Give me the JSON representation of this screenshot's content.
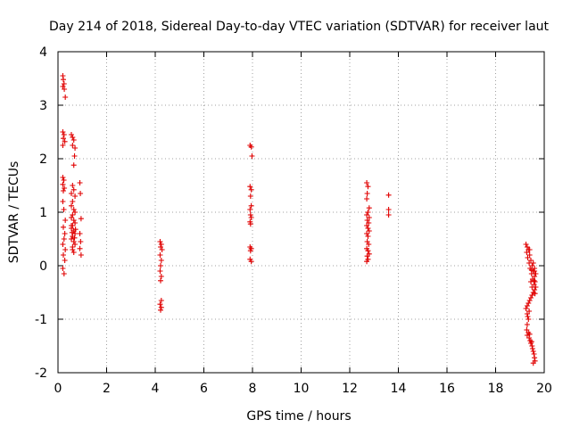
{
  "chart_data": {
    "type": "scatter",
    "title": "Day 214 of 2018, Sidereal Day-to-day VTEC variation (SDTVAR) for receiver laut",
    "xlabel": "GPS time / hours",
    "ylabel": "SDTVAR / TECUs",
    "xlim": [
      0,
      20
    ],
    "ylim": [
      -2,
      4
    ],
    "x_ticks": [
      0,
      2,
      4,
      6,
      8,
      10,
      12,
      14,
      16,
      18,
      20
    ],
    "y_ticks": [
      -2,
      -1,
      0,
      1,
      2,
      3,
      4
    ],
    "grid": true,
    "marker": "+",
    "colors": {
      "series": "#e00000",
      "grid": "#a0a0a0",
      "axis": "#000000"
    },
    "series": [
      {
        "name": "SDTVAR",
        "points": [
          [
            0.2,
            3.55
          ],
          [
            0.22,
            3.48
          ],
          [
            0.25,
            3.4
          ],
          [
            0.2,
            3.35
          ],
          [
            0.26,
            3.3
          ],
          [
            0.3,
            3.15
          ],
          [
            0.2,
            2.5
          ],
          [
            0.25,
            2.45
          ],
          [
            0.22,
            2.38
          ],
          [
            0.28,
            2.32
          ],
          [
            0.2,
            2.25
          ],
          [
            0.2,
            1.65
          ],
          [
            0.24,
            1.6
          ],
          [
            0.2,
            1.52
          ],
          [
            0.26,
            1.45
          ],
          [
            0.22,
            1.4
          ],
          [
            0.2,
            1.2
          ],
          [
            0.24,
            1.05
          ],
          [
            0.3,
            0.85
          ],
          [
            0.22,
            0.72
          ],
          [
            0.28,
            0.6
          ],
          [
            0.25,
            0.5
          ],
          [
            0.2,
            0.4
          ],
          [
            0.3,
            0.3
          ],
          [
            0.22,
            0.2
          ],
          [
            0.28,
            0.1
          ],
          [
            0.2,
            -0.05
          ],
          [
            0.25,
            -0.15
          ],
          [
            0.55,
            2.45
          ],
          [
            0.6,
            2.4
          ],
          [
            0.65,
            2.35
          ],
          [
            0.6,
            2.25
          ],
          [
            0.7,
            2.2
          ],
          [
            0.68,
            2.05
          ],
          [
            0.65,
            1.88
          ],
          [
            0.6,
            1.5
          ],
          [
            0.65,
            1.42
          ],
          [
            0.55,
            1.35
          ],
          [
            0.7,
            1.3
          ],
          [
            0.6,
            1.2
          ],
          [
            0.55,
            1.12
          ],
          [
            0.65,
            1.05
          ],
          [
            0.7,
            1.0
          ],
          [
            0.6,
            0.95
          ],
          [
            0.55,
            0.9
          ],
          [
            0.65,
            0.85
          ],
          [
            0.7,
            0.8
          ],
          [
            0.6,
            0.75
          ],
          [
            0.55,
            0.7
          ],
          [
            0.65,
            0.65
          ],
          [
            0.7,
            0.6
          ],
          [
            0.6,
            0.55
          ],
          [
            0.55,
            0.5
          ],
          [
            0.65,
            0.45
          ],
          [
            0.7,
            0.4
          ],
          [
            0.6,
            0.35
          ],
          [
            0.6,
            0.3
          ],
          [
            0.65,
            0.25
          ],
          [
            0.55,
            0.75
          ],
          [
            0.72,
            0.68
          ],
          [
            0.58,
            0.62
          ],
          [
            0.68,
            0.52
          ],
          [
            0.9,
            1.55
          ],
          [
            0.92,
            1.35
          ],
          [
            0.95,
            0.88
          ],
          [
            0.9,
            0.6
          ],
          [
            0.93,
            0.45
          ],
          [
            0.9,
            0.32
          ],
          [
            0.95,
            0.2
          ],
          [
            4.2,
            0.45
          ],
          [
            4.25,
            0.4
          ],
          [
            4.22,
            0.35
          ],
          [
            4.28,
            0.3
          ],
          [
            4.2,
            0.2
          ],
          [
            4.25,
            0.1
          ],
          [
            4.22,
            0.0
          ],
          [
            4.2,
            -0.1
          ],
          [
            4.25,
            -0.2
          ],
          [
            4.22,
            -0.28
          ],
          [
            4.25,
            -0.65
          ],
          [
            4.2,
            -0.72
          ],
          [
            4.25,
            -0.78
          ],
          [
            4.22,
            -0.83
          ],
          [
            7.9,
            2.25
          ],
          [
            7.95,
            2.22
          ],
          [
            7.98,
            2.05
          ],
          [
            7.9,
            1.48
          ],
          [
            7.95,
            1.42
          ],
          [
            7.92,
            1.3
          ],
          [
            7.95,
            1.12
          ],
          [
            7.9,
            1.05
          ],
          [
            7.92,
            0.95
          ],
          [
            7.95,
            0.9
          ],
          [
            7.9,
            0.82
          ],
          [
            7.92,
            0.78
          ],
          [
            7.9,
            0.35
          ],
          [
            7.95,
            0.32
          ],
          [
            7.92,
            0.28
          ],
          [
            7.9,
            0.12
          ],
          [
            7.95,
            0.08
          ],
          [
            12.7,
            1.55
          ],
          [
            12.75,
            1.48
          ],
          [
            12.72,
            1.35
          ],
          [
            12.7,
            1.25
          ],
          [
            12.8,
            1.08
          ],
          [
            12.75,
            1.0
          ],
          [
            12.7,
            0.95
          ],
          [
            12.8,
            0.9
          ],
          [
            12.72,
            0.85
          ],
          [
            12.78,
            0.8
          ],
          [
            12.7,
            0.75
          ],
          [
            12.75,
            0.7
          ],
          [
            12.8,
            0.65
          ],
          [
            12.7,
            0.6
          ],
          [
            12.75,
            0.55
          ],
          [
            12.72,
            0.45
          ],
          [
            12.78,
            0.4
          ],
          [
            12.7,
            0.32
          ],
          [
            12.75,
            0.28
          ],
          [
            12.8,
            0.22
          ],
          [
            12.72,
            0.18
          ],
          [
            12.75,
            0.12
          ],
          [
            12.7,
            0.08
          ],
          [
            13.6,
            1.32
          ],
          [
            13.6,
            1.05
          ],
          [
            13.6,
            0.95
          ],
          [
            19.25,
            0.4
          ],
          [
            19.3,
            0.35
          ],
          [
            19.35,
            0.3
          ],
          [
            19.28,
            0.25
          ],
          [
            19.4,
            0.2
          ],
          [
            19.32,
            0.15
          ],
          [
            19.45,
            0.1
          ],
          [
            19.38,
            0.05
          ],
          [
            19.5,
            0.0
          ],
          [
            19.42,
            -0.05
          ],
          [
            19.55,
            -0.1
          ],
          [
            19.48,
            -0.15
          ],
          [
            19.6,
            -0.2
          ],
          [
            19.52,
            -0.25
          ],
          [
            19.62,
            -0.3
          ],
          [
            19.58,
            -0.35
          ],
          [
            19.65,
            -0.4
          ],
          [
            19.6,
            -0.45
          ],
          [
            19.55,
            -0.5
          ],
          [
            19.5,
            -0.55
          ],
          [
            19.45,
            -0.6
          ],
          [
            19.4,
            -0.65
          ],
          [
            19.35,
            -0.7
          ],
          [
            19.3,
            -0.75
          ],
          [
            19.25,
            -0.8
          ],
          [
            19.3,
            -0.9
          ],
          [
            19.35,
            -1.0
          ],
          [
            19.3,
            -1.1
          ],
          [
            19.28,
            -1.2
          ],
          [
            19.35,
            -1.25
          ],
          [
            19.3,
            -1.3
          ],
          [
            19.38,
            -1.35
          ],
          [
            19.42,
            -1.4
          ],
          [
            19.45,
            -1.45
          ],
          [
            19.5,
            -1.5
          ],
          [
            19.52,
            -1.55
          ],
          [
            19.55,
            -1.6
          ],
          [
            19.58,
            -1.65
          ],
          [
            19.6,
            -1.72
          ],
          [
            19.62,
            -1.78
          ],
          [
            19.55,
            -1.82
          ],
          [
            19.55,
            0.05
          ],
          [
            19.6,
            -0.05
          ],
          [
            19.65,
            -0.15
          ],
          [
            19.45,
            -0.3
          ],
          [
            19.5,
            -0.4
          ],
          [
            19.4,
            0.3
          ],
          [
            19.48,
            -0.08
          ],
          [
            19.58,
            -0.28
          ],
          [
            19.62,
            -0.52
          ],
          [
            19.38,
            -0.85
          ],
          [
            19.32,
            -0.95
          ],
          [
            19.4,
            -1.28
          ],
          [
            19.48,
            -1.42
          ],
          [
            19.6,
            -0.1
          ]
        ]
      }
    ]
  }
}
